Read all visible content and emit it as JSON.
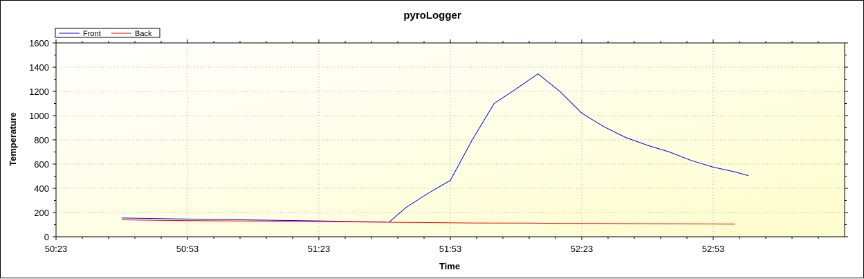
{
  "chart_data": {
    "type": "line",
    "title": "pyroLogger",
    "xlabel": "Time",
    "ylabel": "Temperature",
    "xlim": [
      "50:23",
      "53:23"
    ],
    "ylim": [
      0,
      1600
    ],
    "x_ticks": [
      "50:23",
      "50:53",
      "51:23",
      "51:53",
      "52:23",
      "52:53"
    ],
    "y_ticks": [
      0,
      200,
      400,
      600,
      800,
      1000,
      1200,
      1400,
      1600
    ],
    "grid": true,
    "legend_position": "top-left",
    "background": "gradient light yellow",
    "series": [
      {
        "name": "Front",
        "color": "#0000ff",
        "x": [
          "50:38",
          "50:43",
          "50:48",
          "50:53",
          "50:58",
          "51:03",
          "51:08",
          "51:13",
          "51:18",
          "51:23",
          "51:28",
          "51:33",
          "51:38",
          "51:39",
          "51:43",
          "51:48",
          "51:53",
          "51:58",
          "52:03",
          "52:08",
          "52:13",
          "52:18",
          "52:23",
          "52:28",
          "52:33",
          "52:38",
          "52:43",
          "52:48",
          "52:53",
          "52:58",
          "53:01"
        ],
        "values": [
          155,
          152,
          149,
          146,
          143,
          141,
          139,
          136,
          134,
          131,
          128,
          124,
          122,
          120,
          245,
          360,
          465,
          800,
          1100,
          1220,
          1345,
          1200,
          1020,
          910,
          820,
          755,
          700,
          630,
          575,
          535,
          505
        ]
      },
      {
        "name": "Back",
        "color": "#ff0000",
        "x": [
          "50:38",
          "50:48",
          "50:58",
          "51:08",
          "51:18",
          "51:28",
          "51:38",
          "51:48",
          "51:58",
          "52:08",
          "52:18",
          "52:28",
          "52:38",
          "52:48",
          "52:58"
        ],
        "values": [
          140,
          135,
          132,
          130,
          127,
          124,
          120,
          117,
          114,
          113,
          111,
          110,
          108,
          106,
          104
        ]
      }
    ]
  }
}
